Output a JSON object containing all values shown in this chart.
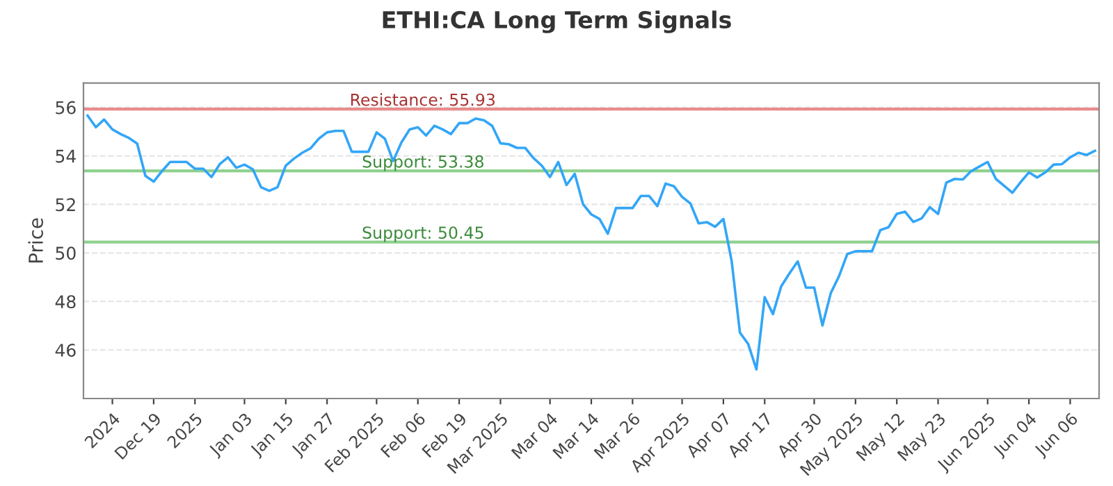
{
  "chart_data": {
    "type": "line",
    "title": "ETHI:CA Long Term Signals",
    "ylabel": "Price",
    "categories": [
      null,
      null,
      null,
      "2024",
      null,
      null,
      null,
      null,
      "Dec 19",
      null,
      null,
      null,
      null,
      "2025",
      null,
      null,
      null,
      null,
      null,
      "Jan 03",
      null,
      null,
      null,
      null,
      "Jan 15",
      null,
      null,
      null,
      null,
      "Jan 27",
      null,
      null,
      null,
      null,
      null,
      "Feb 2025",
      null,
      null,
      null,
      null,
      "Feb 06",
      null,
      null,
      null,
      null,
      "Feb 19",
      null,
      null,
      null,
      null,
      "Mar 2025",
      null,
      null,
      null,
      null,
      null,
      "Mar 04",
      null,
      null,
      null,
      null,
      "Mar 14",
      null,
      null,
      null,
      null,
      "Mar 26",
      null,
      null,
      null,
      null,
      null,
      "Apr 2025",
      null,
      null,
      null,
      null,
      "Apr 07",
      null,
      null,
      null,
      null,
      "Apr 17",
      null,
      null,
      null,
      null,
      null,
      "Apr 30",
      null,
      null,
      null,
      null,
      "May 2025",
      null,
      null,
      null,
      null,
      "May 12",
      null,
      null,
      null,
      null,
      "May 23",
      null,
      null,
      null,
      null,
      null,
      "Jun 2025",
      null,
      null,
      null,
      null,
      "Jun 04",
      null,
      null,
      null,
      null,
      "Jun 06",
      null,
      null,
      null
    ],
    "series": [
      {
        "color": "#33a6f7",
        "values": [
          55.66,
          55.18,
          55.5,
          55.09,
          54.9,
          54.74,
          54.51,
          53.18,
          52.94,
          53.37,
          53.75,
          53.75,
          53.75,
          53.47,
          53.47,
          53.13,
          53.66,
          53.94,
          53.51,
          53.64,
          53.45,
          52.71,
          52.56,
          52.71,
          53.6,
          53.89,
          54.13,
          54.31,
          54.71,
          54.97,
          55.03,
          55.03,
          54.17,
          54.17,
          54.17,
          54.97,
          54.71,
          53.79,
          54.55,
          55.09,
          55.18,
          54.84,
          55.24,
          55.09,
          54.9,
          55.35,
          55.35,
          55.54,
          55.47,
          55.24,
          54.52,
          54.48,
          54.33,
          54.33,
          53.91,
          53.6,
          53.13,
          53.75,
          52.8,
          53.26,
          52.01,
          51.59,
          51.4,
          50.79,
          51.85,
          51.85,
          51.85,
          52.35,
          52.35,
          51.93,
          52.86,
          52.75,
          52.31,
          52.04,
          51.22,
          51.27,
          51.08,
          51.4,
          49.67,
          46.72,
          46.25,
          45.2,
          48.18,
          47.48,
          48.62,
          49.16,
          49.65,
          48.57,
          48.57,
          47.01,
          48.34,
          49.04,
          49.95,
          50.07,
          50.07,
          50.07,
          50.94,
          51.06,
          51.61,
          51.7,
          51.28,
          51.42,
          51.89,
          51.61,
          52.9,
          53.05,
          53.03,
          53.37,
          53.56,
          53.75,
          53.05,
          52.77,
          52.48,
          52.92,
          53.32,
          53.11,
          53.32,
          53.64,
          53.66,
          53.94,
          54.13,
          54.04,
          54.21
        ]
      }
    ],
    "ylim": [
      44,
      57
    ],
    "yticks": [
      46,
      48,
      50,
      52,
      54,
      56
    ],
    "grid": "y",
    "ref_lines": [
      {
        "axis": "y",
        "value": 55.93,
        "label": "Resistance: 55.93",
        "color": "#e88b8b"
      },
      {
        "axis": "y",
        "value": 53.38,
        "label": "Support: 53.38",
        "color": "#8fd18f"
      },
      {
        "axis": "y",
        "value": 50.45,
        "label": "Support: 50.45",
        "color": "#8fd18f"
      }
    ]
  }
}
